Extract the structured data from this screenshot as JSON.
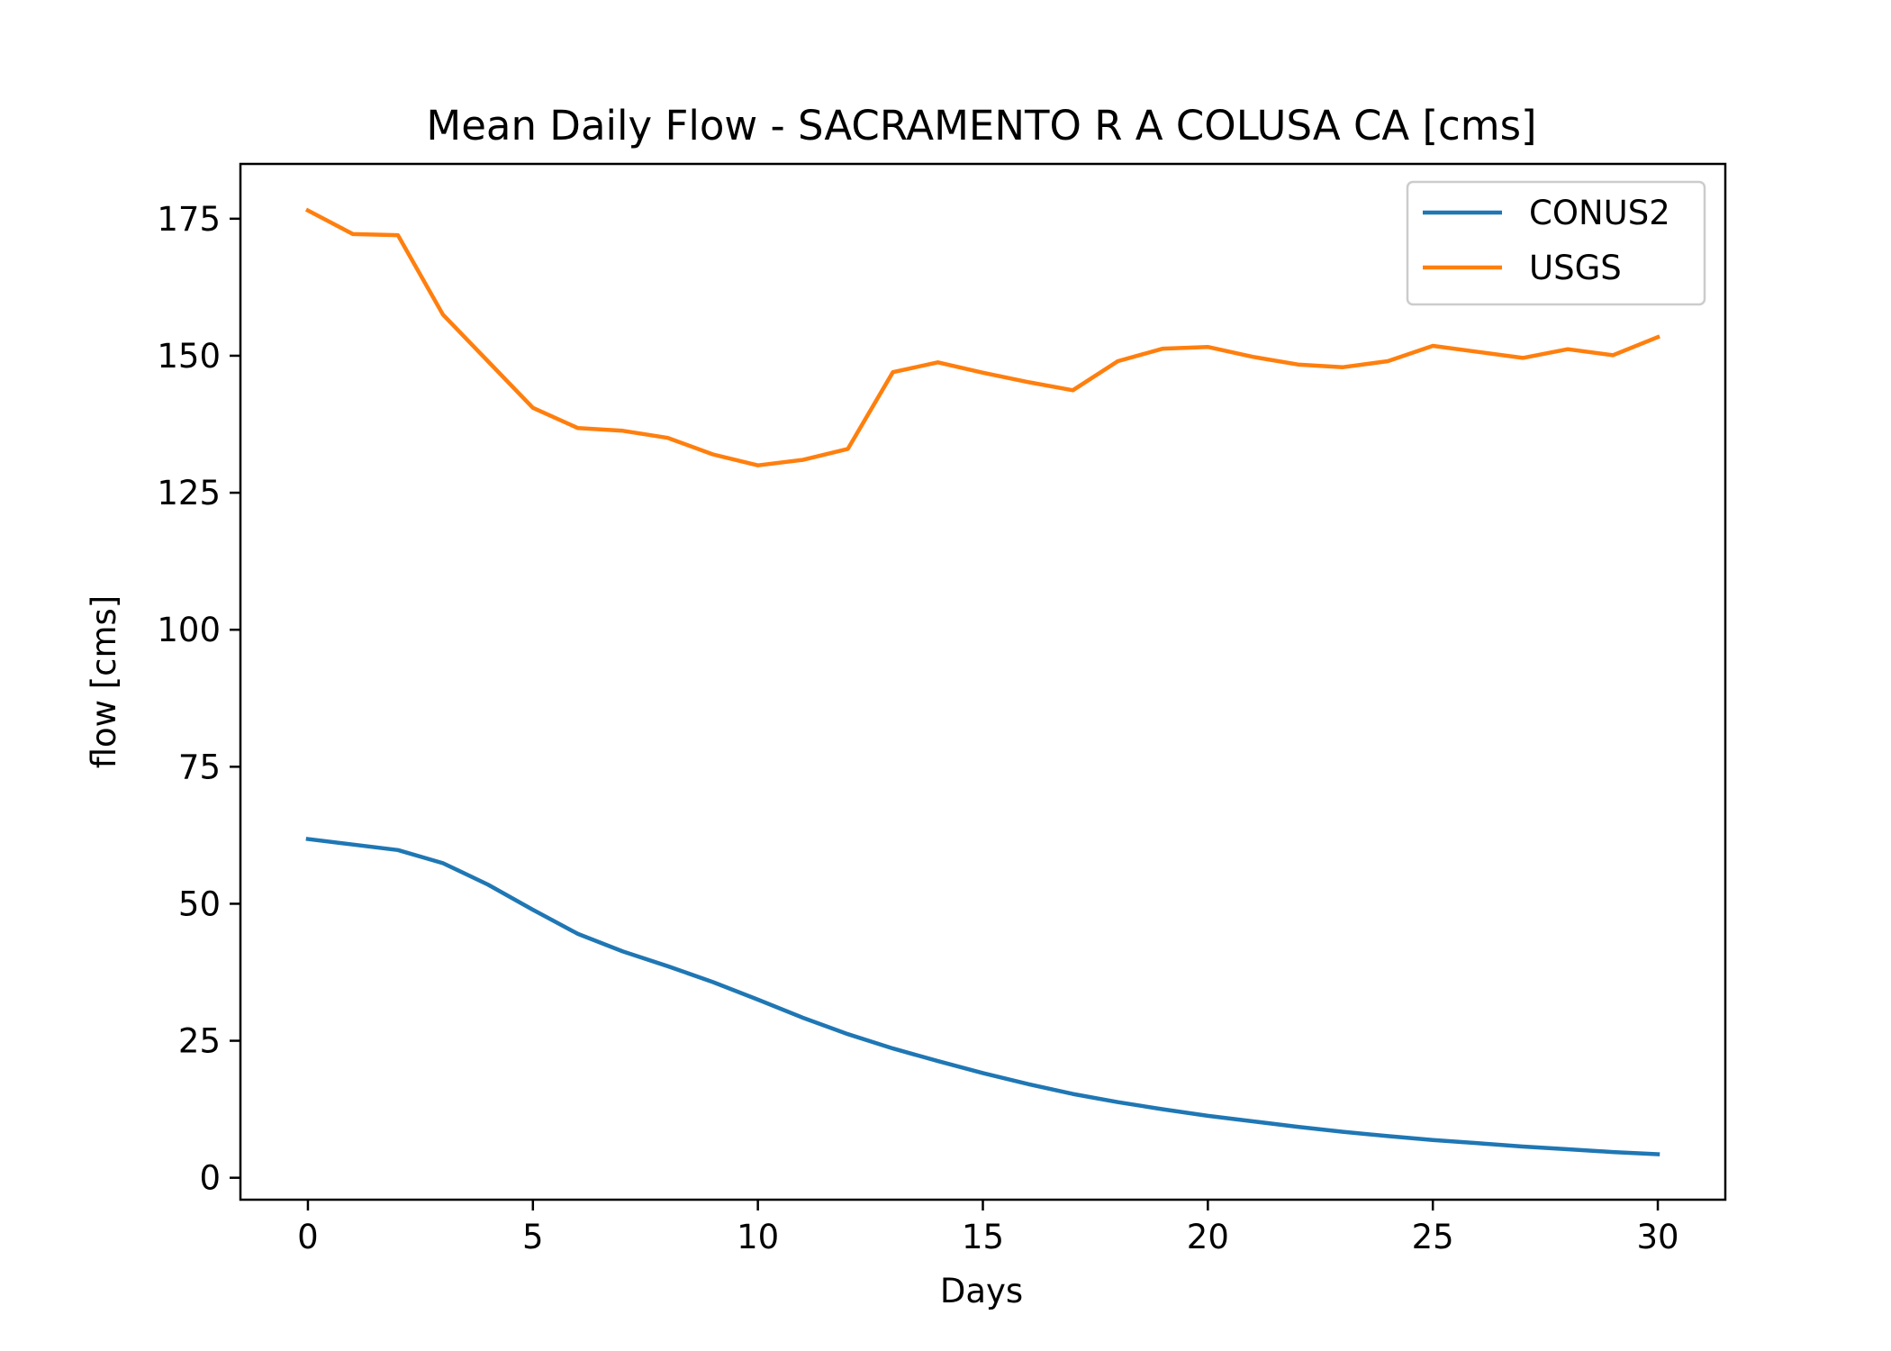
{
  "chart_data": {
    "type": "line",
    "title": "Mean Daily Flow - SACRAMENTO R A COLUSA CA [cms]",
    "xlabel": "Days",
    "ylabel": "flow [cms]",
    "xlim": [
      -1.5,
      31.5
    ],
    "ylim": [
      -4,
      185
    ],
    "xticks": [
      0,
      5,
      10,
      15,
      20,
      25,
      30
    ],
    "yticks": [
      0,
      25,
      50,
      75,
      100,
      125,
      150,
      175
    ],
    "grid": false,
    "legend_position": "top-right",
    "x": [
      0,
      1,
      2,
      3,
      4,
      5,
      6,
      7,
      8,
      9,
      10,
      11,
      12,
      13,
      14,
      15,
      16,
      17,
      18,
      19,
      20,
      21,
      22,
      23,
      24,
      25,
      26,
      27,
      28,
      29,
      30
    ],
    "series": [
      {
        "name": "CONUS2",
        "color": "#1f77b4",
        "values": [
          61.8,
          60.8,
          59.8,
          57.4,
          53.5,
          48.9,
          44.5,
          41.3,
          38.6,
          35.7,
          32.5,
          29.2,
          26.2,
          23.6,
          21.3,
          19.1,
          17.1,
          15.3,
          13.8,
          12.5,
          11.3,
          10.3,
          9.3,
          8.4,
          7.6,
          6.9,
          6.3,
          5.7,
          5.2,
          4.7,
          4.3
        ]
      },
      {
        "name": "USGS",
        "color": "#ff7f0e",
        "values": [
          176.5,
          172.2,
          172.0,
          157.5,
          149.0,
          140.5,
          136.8,
          136.3,
          135.0,
          132.0,
          130.0,
          131.0,
          133.0,
          147.0,
          148.8,
          146.9,
          145.2,
          143.7,
          149.0,
          151.3,
          151.6,
          149.8,
          148.4,
          147.9,
          149.0,
          151.8,
          150.7,
          149.6,
          151.2,
          150.1,
          153.4
        ]
      }
    ]
  }
}
